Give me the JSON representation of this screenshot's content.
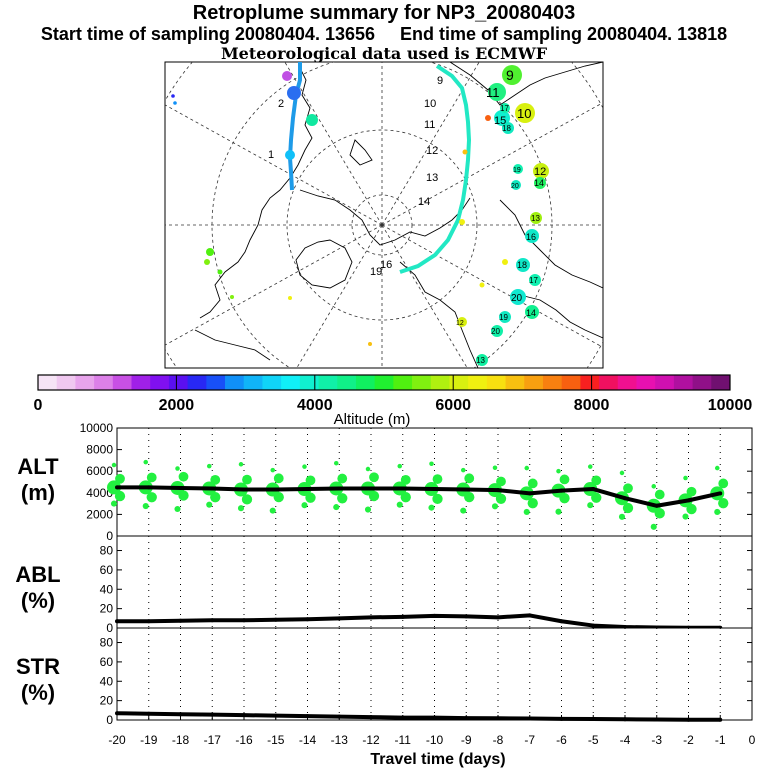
{
  "header": {
    "title": "Retroplume summary for NP3_20080403",
    "start_label": "Start time of sampling 20080404. 13656",
    "end_label": "End time of sampling 20080404. 13818",
    "met_label": "Meteorological data used is ECMWF"
  },
  "map": {
    "track_colors": {
      "track_a": "#1e9be8",
      "track_b": "#22e8c4"
    },
    "labels_track_a": [
      "2",
      "1"
    ],
    "labels_track_b": [
      "9",
      "10",
      "11",
      "12",
      "13",
      "14",
      "16",
      "19"
    ],
    "cluster_labels": [
      "9",
      "11",
      "10",
      "15",
      "17",
      "18",
      "12",
      "14",
      "19",
      "20",
      "13",
      "16",
      "18",
      "17",
      "20",
      "14",
      "19",
      "20",
      "13",
      "12"
    ]
  },
  "colorbar": {
    "tick_labels": [
      "0",
      "2000",
      "4000",
      "6000",
      "8000",
      "10000"
    ],
    "axis_label": "Altitude (m)",
    "colors": [
      "#f6e4f6",
      "#f0c8f0",
      "#e8a4ec",
      "#dc80e8",
      "#c850e4",
      "#a020e8",
      "#8010f0",
      "#5a10f0",
      "#2828f4",
      "#1850f8",
      "#1090f8",
      "#10b4f8",
      "#10d4f8",
      "#10f0f8",
      "#10f0d0",
      "#10f0a8",
      "#10f088",
      "#10f060",
      "#20f030",
      "#50f010",
      "#80f010",
      "#b0f010",
      "#d8f010",
      "#f0f010",
      "#f8e010",
      "#f8c010",
      "#f8a010",
      "#f88010",
      "#f86010",
      "#f82020",
      "#f01060",
      "#f01090",
      "#e810b0",
      "#d010b0",
      "#b010a0",
      "#901088",
      "#701070"
    ]
  },
  "chart_data": [
    {
      "type": "line",
      "title": "ALT (m)",
      "ylabel": "ALT (m)",
      "ylabel_line1": "ALT",
      "ylabel_line2": "(m)",
      "ylim": [
        0,
        10000
      ],
      "yticks": [
        "0",
        "2000",
        "4000",
        "6000",
        "8000",
        "10000"
      ],
      "xlim": [
        -20,
        0
      ],
      "x": [
        -20,
        -19,
        -18,
        -17,
        -16,
        -15,
        -14,
        -13,
        -12,
        -11,
        -10,
        -9,
        -8,
        -7,
        -6,
        -5,
        -4,
        -3,
        -2,
        -1
      ],
      "values": [
        4500,
        4500,
        4450,
        4400,
        4300,
        4300,
        4350,
        4400,
        4400,
        4400,
        4350,
        4300,
        4250,
        3950,
        4200,
        4350,
        3500,
        2800,
        3300,
        3950
      ],
      "cluster_color": "#22f040"
    },
    {
      "type": "line",
      "title": "ABL (%)",
      "ylabel": "ABL (%)",
      "ylabel_line1": "ABL",
      "ylabel_line2": "(%)",
      "ylim": [
        0,
        95
      ],
      "yticks": [
        "0",
        "20",
        "40",
        "60",
        "80"
      ],
      "xlim": [
        -20,
        0
      ],
      "x": [
        -20,
        -19,
        -18,
        -17,
        -16,
        -15,
        -14,
        -13,
        -12,
        -11,
        -10,
        -9,
        -8,
        -7,
        -6,
        -5,
        -4,
        -3,
        -2,
        -1
      ],
      "values": [
        7,
        7,
        7.5,
        8,
        8,
        8.5,
        9,
        10,
        11,
        11.5,
        12.5,
        12,
        11,
        13,
        7,
        2.5,
        1,
        0.5,
        0.3,
        0.2
      ]
    },
    {
      "type": "line",
      "title": "STR (%)",
      "ylabel": "STR (%)",
      "ylabel_line1": "STR",
      "ylabel_line2": "(%)",
      "ylim": [
        0,
        95
      ],
      "yticks": [
        "0",
        "20",
        "40",
        "60",
        "80"
      ],
      "xlim": [
        -20,
        0
      ],
      "x": [
        -20,
        -19,
        -18,
        -17,
        -16,
        -15,
        -14,
        -13,
        -12,
        -11,
        -10,
        -9,
        -8,
        -7,
        -6,
        -5,
        -4,
        -3,
        -2,
        -1
      ],
      "xticks": [
        "-20",
        "-19",
        "-18",
        "-17",
        "-16",
        "-15",
        "-14",
        "-13",
        "-12",
        "-11",
        "-10",
        "-9",
        "-8",
        "-7",
        "-6",
        "-5",
        "-4",
        "-3",
        "-2",
        "-1",
        "0"
      ],
      "xlabel": "Travel time (days)",
      "values": [
        7,
        6.5,
        6,
        5.5,
        5,
        4.5,
        4,
        3.5,
        3,
        2.5,
        2.5,
        2,
        1.8,
        1.5,
        1.2,
        1,
        0.8,
        0.5,
        0.3,
        0.2
      ]
    }
  ]
}
